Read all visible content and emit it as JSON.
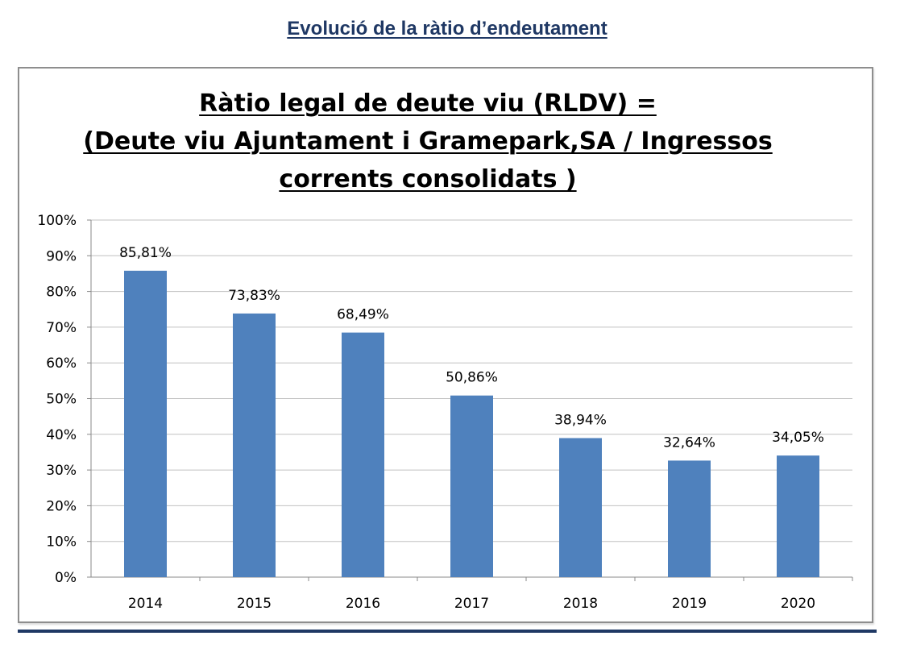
{
  "heading": "Evolució de la ràtio d’endeutament",
  "chart_data": {
    "type": "bar",
    "title_lines": [
      "Ràtio legal de  deute viu (RLDV) =",
      "(Deute viu Ajuntament i  Gramepark,SA / Ingressos",
      "corrents consolidats )"
    ],
    "categories": [
      "2014",
      "2015",
      "2016",
      "2017",
      "2018",
      "2019",
      "2020"
    ],
    "values": [
      85.81,
      73.83,
      68.49,
      50.86,
      38.94,
      32.64,
      34.05
    ],
    "data_labels": [
      "85,81%",
      "73,83%",
      "68,49%",
      "50,86%",
      "38,94%",
      "32,64%",
      "34,05%"
    ],
    "y_ticks": [
      "0%",
      "10%",
      "20%",
      "30%",
      "40%",
      "50%",
      "60%",
      "70%",
      "80%",
      "90%",
      "100%"
    ],
    "ylim": [
      0,
      100
    ],
    "grid": true,
    "legend": "none",
    "bar_color": "#4f81bd",
    "grid_color": "#c0c0c0"
  }
}
